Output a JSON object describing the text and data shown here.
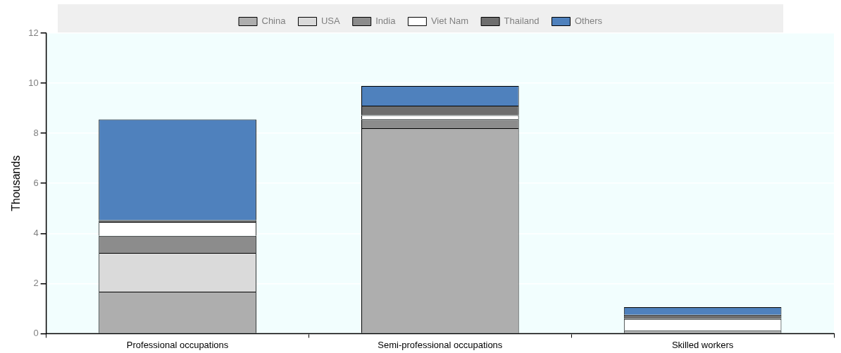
{
  "chart_data": {
    "type": "bar",
    "stacked": true,
    "ylabel": "Thousands",
    "categories": [
      "Professional occupations",
      "Semi-professional occupations",
      "Skilled workers"
    ],
    "series": [
      {
        "name": "China",
        "color": "#aeaeae",
        "values": [
          1.67,
          8.2,
          0.12
        ]
      },
      {
        "name": "USA",
        "color": "#dadada",
        "values": [
          1.55,
          0,
          0
        ]
      },
      {
        "name": "India",
        "color": "#8c8c8c",
        "values": [
          0.68,
          0.36,
          0
        ]
      },
      {
        "name": "Viet Nam",
        "color": "#ffffff",
        "values": [
          0.56,
          0.16,
          0.46
        ]
      },
      {
        "name": "Thailand",
        "color": "#6e6e6e",
        "values": [
          0.07,
          0.38,
          0.17
        ]
      },
      {
        "name": "Others",
        "color": "#4f81bd",
        "values": [
          4.02,
          0.79,
          0.3
        ]
      }
    ],
    "ylim": [
      0,
      12
    ],
    "yticks": [
      0,
      2,
      4,
      6,
      8,
      10,
      12
    ],
    "grid": "y",
    "legend": "top"
  }
}
